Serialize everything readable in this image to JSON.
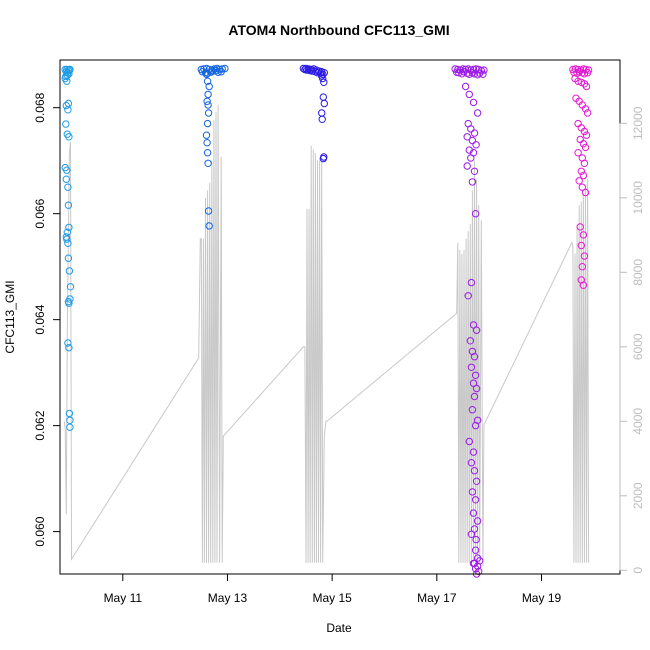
{
  "chart_data": {
    "type": "scatter",
    "title": "ATOM4 Northbound CFC113_GMI",
    "xlabel": "Date",
    "ylabel": "CFC113_GMI",
    "right_axis_label": "",
    "xlim": [
      9.8,
      20.5
    ],
    "ylim": [
      0.0592,
      0.0689
    ],
    "y2lim": [
      -100,
      13700
    ],
    "x_ticks": [
      {
        "value": 11,
        "label": "May 11"
      },
      {
        "value": 13,
        "label": "May 13"
      },
      {
        "value": 15,
        "label": "May 15"
      },
      {
        "value": 17,
        "label": "May 17"
      },
      {
        "value": 19,
        "label": "May 19"
      }
    ],
    "y_ticks": [
      {
        "value": 0.06,
        "label": "0.060"
      },
      {
        "value": 0.062,
        "label": "0.062"
      },
      {
        "value": 0.064,
        "label": "0.064"
      },
      {
        "value": 0.066,
        "label": "0.066"
      },
      {
        "value": 0.068,
        "label": "0.068"
      }
    ],
    "y2_ticks": [
      {
        "value": 0,
        "label": "0"
      },
      {
        "value": 2000,
        "label": "2000"
      },
      {
        "value": 4000,
        "label": "4000"
      },
      {
        "value": 6000,
        "label": "6000"
      },
      {
        "value": 8000,
        "label": "8000"
      },
      {
        "value": 10000,
        "label": "10000"
      },
      {
        "value": 12000,
        "label": "12000"
      }
    ],
    "grid": false,
    "legend": "none",
    "colors": {
      "flight1": "#1e9be8",
      "flight2": "#1565e0",
      "flight3": "#2a1ae6",
      "flight4": "#9b1be6",
      "flight5": "#e21bd2",
      "altitude_line": "#c8c8c8",
      "axis": "#000000",
      "right_axis": "#bdbdbd"
    },
    "series": [
      {
        "color_key": "flight1",
        "x": [
          9.9,
          9.93,
          9.96,
          9.98,
          9.92,
          9.95,
          9.97,
          9.94,
          9.91,
          9.99,
          9.9,
          9.93,
          9.96,
          9.92,
          9.95,
          9.91,
          9.94,
          9.97,
          9.9,
          9.93,
          9.92,
          9.95,
          9.96,
          9.97,
          9.94,
          9.92,
          9.93,
          9.95,
          9.96,
          9.98,
          10.0,
          9.99,
          9.96,
          9.97,
          9.95,
          9.97,
          9.98,
          9.99,
          9.99
        ],
        "y": [
          0.06872,
          0.06872,
          0.06871,
          0.06872,
          0.06868,
          0.06866,
          0.06864,
          0.06861,
          0.06859,
          0.06872,
          0.06855,
          0.0685,
          0.06808,
          0.06804,
          0.06796,
          0.06769,
          0.0675,
          0.06745,
          0.06687,
          0.06682,
          0.06665,
          0.0665,
          0.06616,
          0.06574,
          0.06565,
          0.06556,
          0.06552,
          0.06544,
          0.06516,
          0.06492,
          0.06462,
          0.06439,
          0.06434,
          0.06431,
          0.06356,
          0.06347,
          0.06223,
          0.0621,
          0.06197
        ]
      },
      {
        "color_key": "flight2",
        "x": [
          12.5,
          12.55,
          12.6,
          12.65,
          12.7,
          12.75,
          12.8,
          12.85,
          12.9,
          12.95,
          12.52,
          12.58,
          12.62,
          12.68,
          12.72,
          12.78,
          12.82,
          12.88,
          12.6,
          12.62,
          12.65,
          12.63,
          12.61,
          12.63,
          12.64,
          12.62,
          12.6,
          12.61,
          12.62,
          12.63,
          12.64,
          12.65
        ],
        "y": [
          0.06872,
          0.06873,
          0.06874,
          0.06872,
          0.06871,
          0.06873,
          0.06874,
          0.06872,
          0.06873,
          0.06874,
          0.06868,
          0.06866,
          0.06865,
          0.06867,
          0.06869,
          0.0687,
          0.06867,
          0.06868,
          0.06863,
          0.0685,
          0.0684,
          0.06825,
          0.06812,
          0.06805,
          0.0679,
          0.0677,
          0.06748,
          0.06734,
          0.06715,
          0.06695,
          0.06605,
          0.06577
        ]
      },
      {
        "color_key": "flight3",
        "x": [
          14.45,
          14.5,
          14.55,
          14.6,
          14.65,
          14.7,
          14.75,
          14.8,
          14.85,
          14.48,
          14.52,
          14.58,
          14.62,
          14.68,
          14.72,
          14.78,
          14.82,
          14.8,
          14.82,
          14.84,
          14.83,
          14.85,
          14.8,
          14.81,
          14.84,
          14.83
        ],
        "y": [
          0.06874,
          0.06874,
          0.06873,
          0.06872,
          0.06873,
          0.06871,
          0.06869,
          0.06868,
          0.06866,
          0.06872,
          0.06871,
          0.0687,
          0.06869,
          0.06868,
          0.06866,
          0.06865,
          0.06863,
          0.0686,
          0.06855,
          0.06848,
          0.0682,
          0.06808,
          0.0679,
          0.06778,
          0.06707,
          0.06704
        ]
      },
      {
        "color_key": "flight4",
        "x": [
          17.35,
          17.4,
          17.45,
          17.5,
          17.55,
          17.6,
          17.65,
          17.7,
          17.75,
          17.8,
          17.85,
          17.9,
          17.38,
          17.42,
          17.48,
          17.52,
          17.58,
          17.62,
          17.68,
          17.72,
          17.78,
          17.82,
          17.88,
          17.55,
          17.62,
          17.7,
          17.78,
          17.6,
          17.65,
          17.72,
          17.58,
          17.68,
          17.75,
          17.62,
          17.7,
          17.65,
          17.58,
          17.72,
          17.68,
          17.74,
          17.66,
          17.6,
          17.7,
          17.76,
          17.64,
          17.68,
          17.72,
          17.66,
          17.74,
          17.7,
          17.76,
          17.72,
          17.68,
          17.78,
          17.74,
          17.62,
          17.7,
          17.66,
          17.72,
          17.76,
          17.68,
          17.74,
          17.7,
          17.78,
          17.72,
          17.66,
          17.75,
          17.74,
          17.78,
          17.7,
          17.74,
          17.76,
          17.72,
          17.8,
          17.78,
          17.82
        ],
        "y": [
          0.06873,
          0.06872,
          0.06871,
          0.06873,
          0.06872,
          0.06873,
          0.06871,
          0.06872,
          0.06873,
          0.06872,
          0.0687,
          0.06871,
          0.06867,
          0.06866,
          0.06864,
          0.06868,
          0.06865,
          0.06863,
          0.06866,
          0.06864,
          0.06862,
          0.06865,
          0.06863,
          0.0684,
          0.06825,
          0.0681,
          0.0679,
          0.0677,
          0.0676,
          0.06752,
          0.06745,
          0.06738,
          0.0673,
          0.0672,
          0.06715,
          0.06705,
          0.0669,
          0.0668,
          0.0666,
          0.066,
          0.0647,
          0.06445,
          0.0639,
          0.0638,
          0.0636,
          0.0634,
          0.0633,
          0.0631,
          0.06295,
          0.0628,
          0.0627,
          0.06255,
          0.0623,
          0.0621,
          0.062,
          0.0617,
          0.0615,
          0.0613,
          0.06115,
          0.06095,
          0.06075,
          0.0606,
          0.06035,
          0.0602,
          0.06005,
          0.05995,
          0.05985,
          0.05965,
          0.0595,
          0.0594,
          0.0593,
          0.0592,
          0.0594,
          0.05925,
          0.05935,
          0.05945
        ]
      },
      {
        "color_key": "flight5",
        "x": [
          19.6,
          19.65,
          19.7,
          19.75,
          19.8,
          19.85,
          19.9,
          19.62,
          19.68,
          19.72,
          19.78,
          19.82,
          19.88,
          19.64,
          19.7,
          19.76,
          19.82,
          19.86,
          19.66,
          19.72,
          19.78,
          19.84,
          19.88,
          19.7,
          19.76,
          19.82,
          19.86,
          19.74,
          19.8,
          19.84,
          19.7,
          19.78,
          19.82,
          19.76,
          19.8,
          19.72,
          19.78,
          19.84,
          19.74,
          19.8,
          19.76,
          19.82,
          19.78,
          19.76,
          19.8
        ],
        "y": [
          0.06872,
          0.06873,
          0.06872,
          0.06871,
          0.06873,
          0.06872,
          0.06871,
          0.06867,
          0.06865,
          0.06868,
          0.06866,
          0.06864,
          0.06866,
          0.06855,
          0.0685,
          0.06848,
          0.06845,
          0.0684,
          0.06818,
          0.06812,
          0.06805,
          0.06798,
          0.0679,
          0.0677,
          0.06762,
          0.06755,
          0.06748,
          0.0674,
          0.06732,
          0.06725,
          0.06715,
          0.06705,
          0.06695,
          0.0668,
          0.06672,
          0.06662,
          0.0665,
          0.0664,
          0.06575,
          0.0656,
          0.0654,
          0.0652,
          0.065,
          0.06475,
          0.06465
        ]
      }
    ],
    "altitude_line": {
      "x": [
        9.88,
        9.9,
        9.92,
        9.94,
        9.96,
        9.98,
        10.0,
        10.02,
        12.45,
        12.48,
        12.5,
        12.52,
        12.54,
        12.56,
        12.58,
        12.6,
        12.62,
        12.64,
        12.66,
        12.68,
        12.7,
        12.72,
        12.74,
        12.76,
        12.78,
        12.8,
        12.82,
        12.85,
        12.88,
        12.9,
        12.92,
        14.45,
        14.48,
        14.5,
        14.52,
        14.54,
        14.56,
        14.58,
        14.6,
        14.62,
        14.64,
        14.66,
        14.68,
        14.7,
        14.72,
        14.74,
        14.76,
        14.78,
        14.8,
        14.82,
        14.85,
        14.88,
        14.9,
        17.38,
        17.4,
        17.42,
        17.44,
        17.46,
        17.48,
        17.5,
        17.52,
        17.54,
        17.56,
        17.58,
        17.6,
        17.62,
        17.64,
        17.66,
        17.68,
        17.7,
        17.72,
        17.74,
        17.76,
        17.78,
        17.8,
        17.82,
        17.85,
        17.88,
        17.9,
        19.58,
        19.6,
        19.62,
        19.64,
        19.66,
        19.68,
        19.7,
        19.72,
        19.74,
        19.76,
        19.78,
        19.8,
        19.82,
        19.84,
        19.86,
        19.88,
        19.9
      ],
      "alt": [
        4000,
        3800,
        1500,
        6500,
        9000,
        11200,
        11500,
        300,
        5700,
        8900,
        8900,
        200,
        8900,
        200,
        10000,
        200,
        10200,
        200,
        10400,
        200,
        11000,
        200,
        12100,
        200,
        12300,
        200,
        12500,
        200,
        11100,
        200,
        3600,
        6000,
        6000,
        200,
        9700,
        200,
        9700,
        200,
        11400,
        200,
        11300,
        200,
        11200,
        200,
        11000,
        200,
        11000,
        200,
        11100,
        200,
        3600,
        4000,
        4000,
        6900,
        8800,
        200,
        8600,
        200,
        8500,
        200,
        8600,
        200,
        8900,
        200,
        9100,
        200,
        9300,
        200,
        10200,
        200,
        11000,
        200,
        10500,
        200,
        9800,
        200,
        9400,
        100,
        3900,
        8800,
        8700,
        200,
        8500,
        200,
        9200,
        200,
        9800,
        200,
        9900,
        200,
        10100,
        200,
        10300,
        200,
        10500,
        200
      ]
    }
  }
}
